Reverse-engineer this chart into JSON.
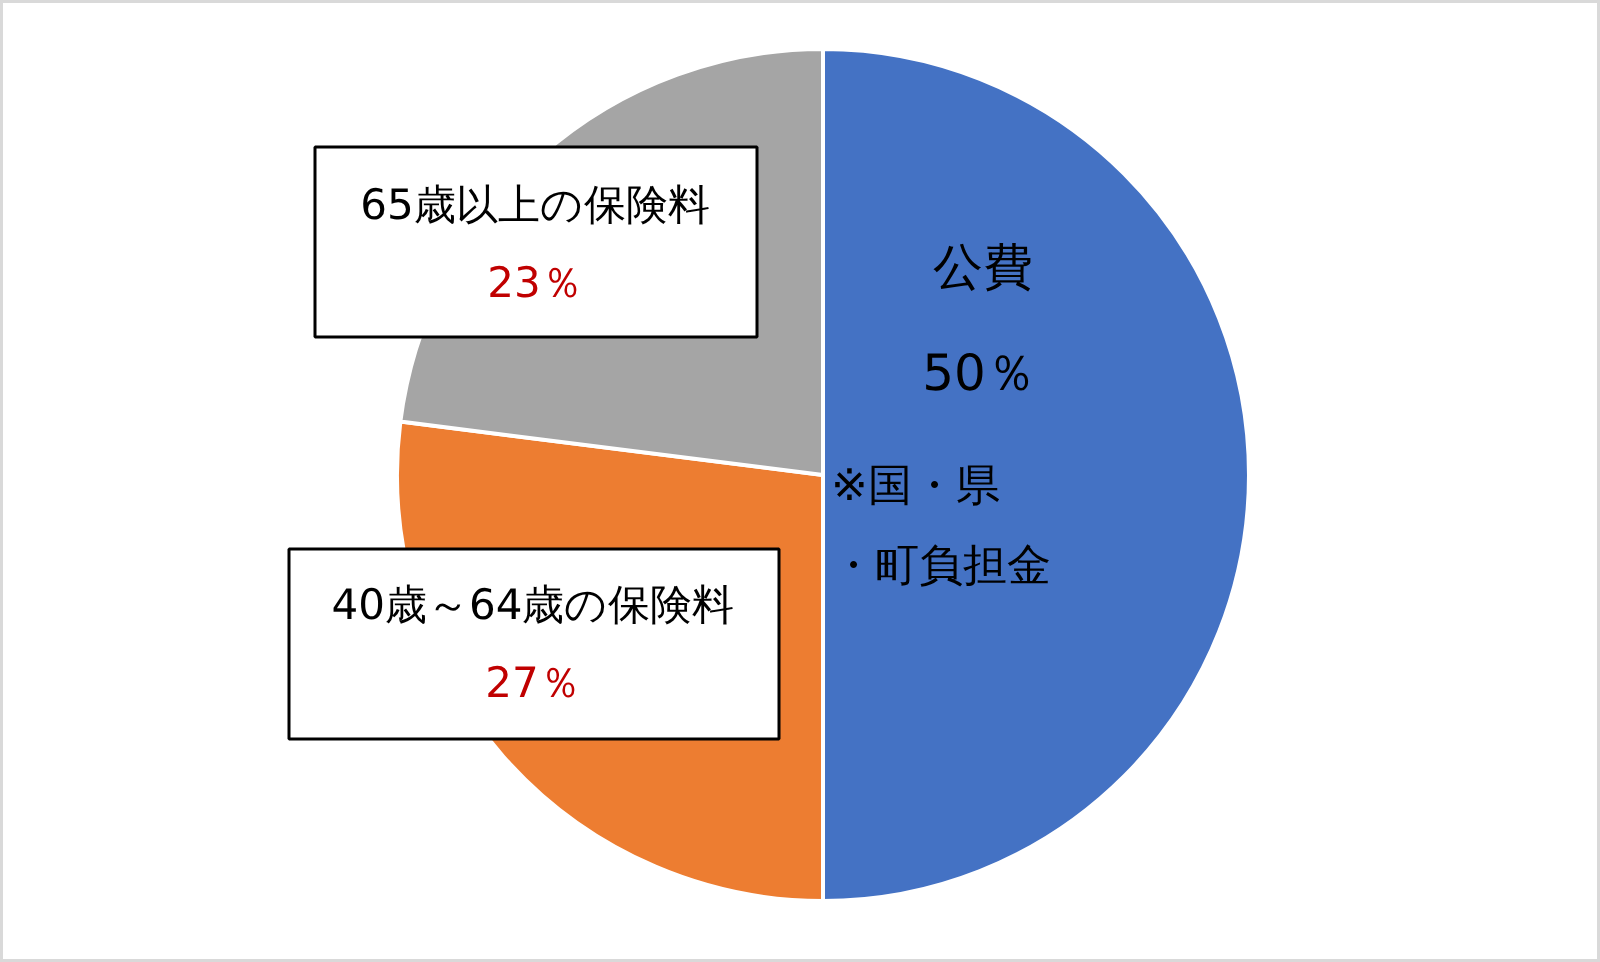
{
  "chart_data": {
    "type": "pie",
    "categories": [
      "公費",
      "40歳～64歳の保険料",
      "65歳以上の保険料"
    ],
    "values": [
      50,
      27,
      23
    ],
    "colors": [
      "#4472c4",
      "#ed7d31",
      "#a5a5a5"
    ],
    "value_labels": [
      "50％",
      "27％",
      "23％"
    ],
    "annotations": [
      "※国・県",
      "・町負担金"
    ]
  }
}
